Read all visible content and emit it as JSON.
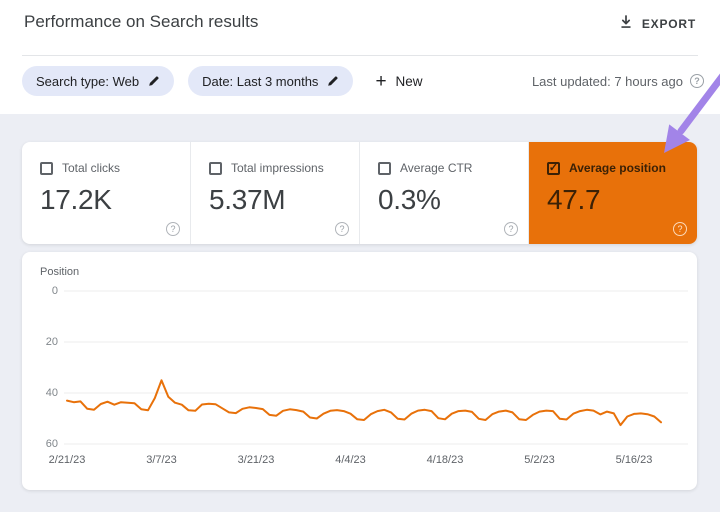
{
  "header": {
    "title": "Performance on Search results",
    "export_label": "EXPORT"
  },
  "filters": {
    "chips": [
      {
        "label": "Search type: Web"
      },
      {
        "label": "Date: Last 3 months"
      }
    ],
    "new_label": "New",
    "last_updated": "Last updated: 7 hours ago"
  },
  "metrics": {
    "cards": [
      {
        "id": "total-clicks",
        "label": "Total clicks",
        "value": "17.2K",
        "checked": false,
        "selected": false
      },
      {
        "id": "total-impressions",
        "label": "Total impressions",
        "value": "5.37M",
        "checked": false,
        "selected": false
      },
      {
        "id": "average-ctr",
        "label": "Average CTR",
        "value": "0.3%",
        "checked": false,
        "selected": false
      },
      {
        "id": "average-position",
        "label": "Average position",
        "value": "47.7",
        "checked": true,
        "selected": true,
        "selected_color": "#E8710A"
      }
    ]
  },
  "chart_data": {
    "type": "line",
    "series_name": "Average position",
    "color": "#E8710A",
    "ylabel": "Position",
    "y_axis": {
      "ticks": [
        0,
        20,
        40,
        60
      ],
      "range": [
        0,
        60
      ],
      "inverted": true
    },
    "x_tick_labels": [
      "2/21/23",
      "3/7/23",
      "3/21/23",
      "4/4/23",
      "4/18/23",
      "5/2/23",
      "5/16/23"
    ],
    "x_tick_indices": [
      0,
      14,
      28,
      42,
      56,
      70,
      84
    ],
    "start_date": "2/21/23",
    "end_date": "5/20/23",
    "grid": true,
    "values": [
      43.0,
      43.6,
      43.3,
      46.2,
      46.6,
      44.3,
      43.4,
      44.6,
      43.6,
      43.8,
      44.0,
      46.4,
      46.8,
      42.0,
      35.0,
      41.5,
      43.8,
      44.6,
      46.8,
      47.0,
      44.5,
      44.2,
      44.4,
      46.0,
      47.6,
      47.9,
      46.2,
      45.6,
      45.9,
      46.3,
      48.6,
      48.9,
      47.0,
      46.4,
      46.7,
      47.3,
      49.6,
      50.0,
      48.1,
      47.0,
      46.7,
      47.1,
      48.1,
      50.3,
      50.6,
      48.3,
      47.1,
      46.6,
      47.6,
      50.1,
      50.4,
      48.1,
      46.9,
      46.6,
      47.1,
      49.9,
      50.3,
      48.1,
      47.1,
      46.9,
      47.4,
      50.1,
      50.6,
      48.3,
      47.3,
      46.9,
      47.6,
      50.3,
      50.6,
      48.6,
      47.3,
      46.9,
      47.1,
      50.1,
      50.4,
      48.1,
      47.1,
      46.6,
      46.9,
      48.4,
      47.3,
      48.0,
      52.6,
      49.2,
      48.2,
      48.0,
      48.3,
      49.2,
      51.5
    ]
  },
  "annotation": {
    "type": "arrow",
    "color": "#A284E8",
    "points_at": "Average position card"
  }
}
